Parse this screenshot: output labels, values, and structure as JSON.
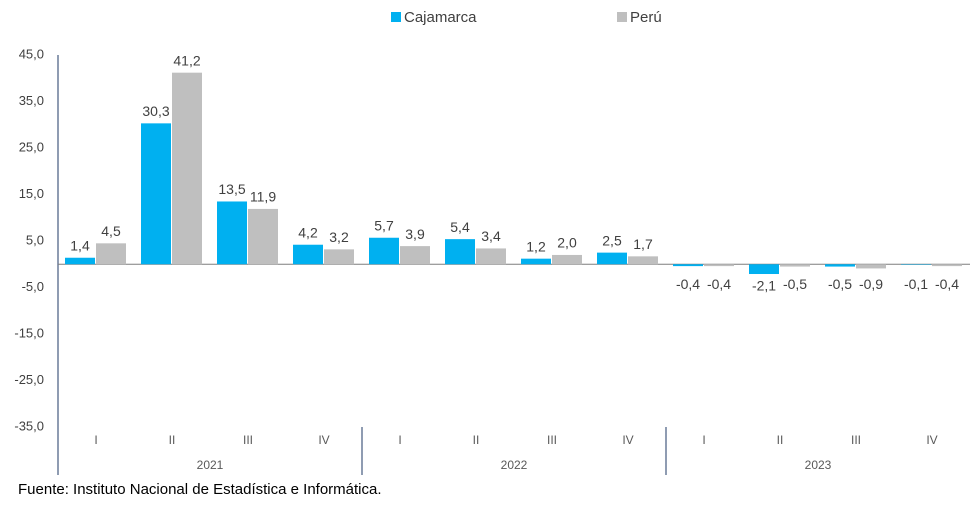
{
  "chart_data": {
    "type": "bar",
    "categories": [
      "I",
      "II",
      "III",
      "IV",
      "I",
      "II",
      "III",
      "IV",
      "I",
      "II",
      "III",
      "IV"
    ],
    "x_groups": [
      "2021",
      "2022",
      "2023"
    ],
    "series": [
      {
        "name": "Cajamarca",
        "color": "#00b0f0",
        "values": [
          1.4,
          30.3,
          13.5,
          4.2,
          5.7,
          5.4,
          1.2,
          2.5,
          -0.4,
          -2.1,
          -0.5,
          -0.1
        ],
        "value_labels": [
          "1,4",
          "30,3",
          "13,5",
          "4,2",
          "5,7",
          "5,4",
          "1,2",
          "2,5",
          "-0,4",
          "-2,1",
          "-0,5",
          "-0,1"
        ]
      },
      {
        "name": "Perú",
        "color": "#bfbfbf",
        "values": [
          4.5,
          41.2,
          11.9,
          3.2,
          3.9,
          3.4,
          2.0,
          1.7,
          -0.4,
          -0.5,
          -0.9,
          -0.4
        ],
        "value_labels": [
          "4,5",
          "41,2",
          "11,9",
          "3,2",
          "3,9",
          "3,4",
          "2,0",
          "1,7",
          "-0,4",
          "-0,5",
          "-0,9",
          "-0,4"
        ]
      }
    ],
    "ylim": [
      -35,
      45
    ],
    "yticks": [
      {
        "value": -35,
        "label": "-35,0"
      },
      {
        "value": -25,
        "label": "-25,0"
      },
      {
        "value": -15,
        "label": "-15,0"
      },
      {
        "value": -5,
        "label": "-5,0"
      },
      {
        "value": 5,
        "label": "5,0"
      },
      {
        "value": 15,
        "label": "15,0"
      },
      {
        "value": 25,
        "label": "25,0"
      },
      {
        "value": 35,
        "label": "35,0"
      },
      {
        "value": 45,
        "label": "45,0"
      }
    ],
    "legend": "top",
    "source": "Fuente: Instituto Nacional de Estadística e Informática."
  }
}
